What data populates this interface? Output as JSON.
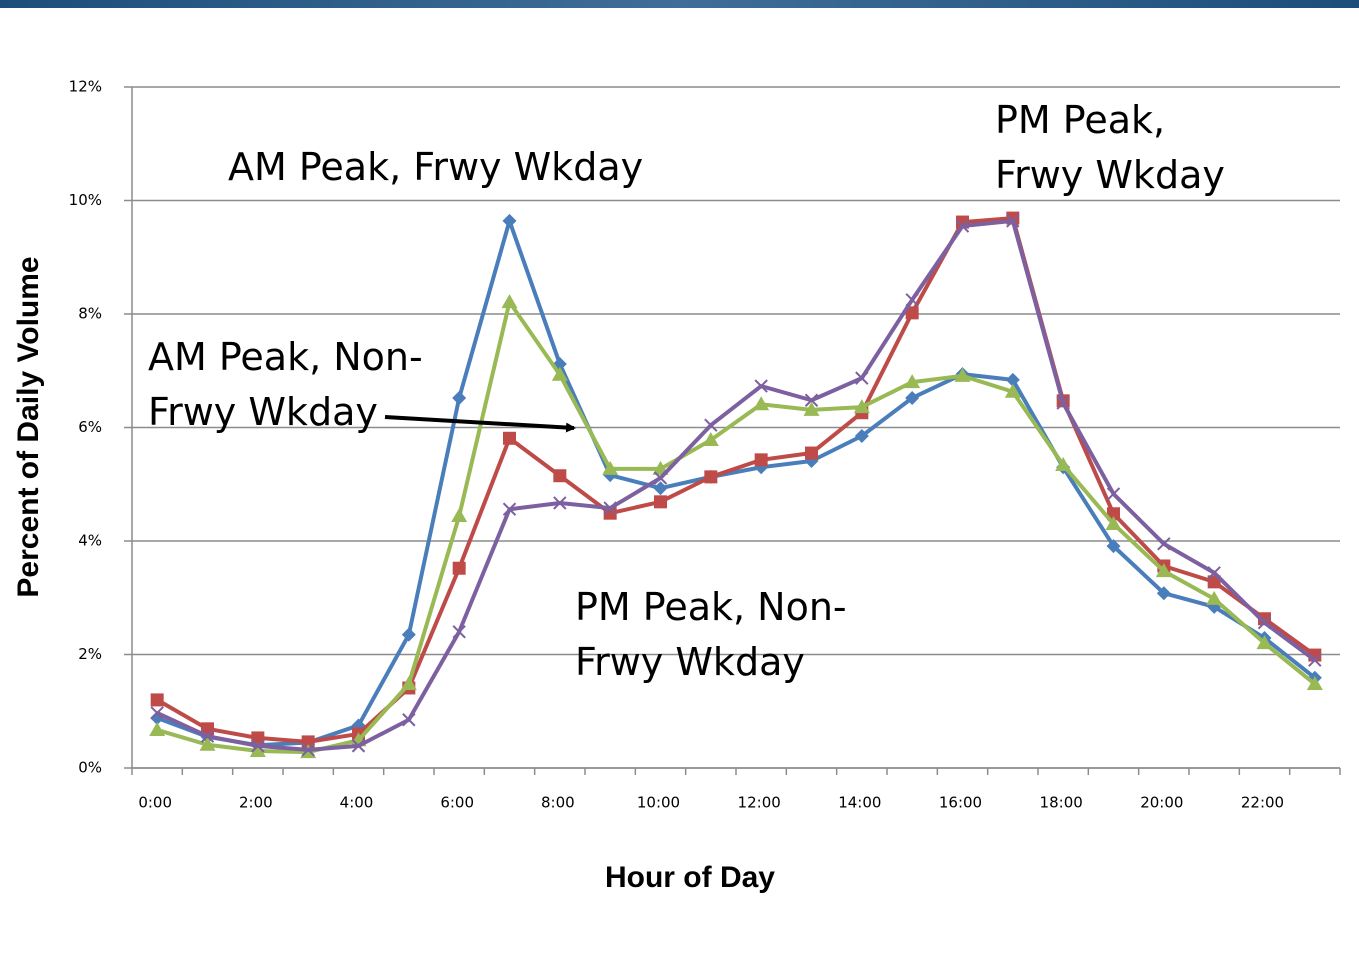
{
  "chart_data": {
    "type": "line",
    "x_label": "Hour of Day",
    "y_label": "Percent of Daily Volume",
    "categories": [
      "0:00",
      null,
      "2:00",
      null,
      "4:00",
      null,
      "6:00",
      null,
      "8:00",
      null,
      "10:00",
      null,
      "12:00",
      null,
      "14:00",
      null,
      "16:00",
      null,
      "18:00",
      null,
      "20:00",
      null,
      "22:00",
      null
    ],
    "ylim": [
      0,
      12
    ],
    "yticks": [
      {
        "value": 0,
        "label": "0%"
      },
      {
        "value": 2,
        "label": "2%"
      },
      {
        "value": 4,
        "label": "4%"
      },
      {
        "value": 6,
        "label": "6%"
      },
      {
        "value": 8,
        "label": "8%"
      },
      {
        "value": 10,
        "label": "10%"
      },
      {
        "value": 12,
        "label": "12%"
      }
    ],
    "grid": true,
    "series": [
      {
        "color": "#4a7ebb",
        "marker": "diamond",
        "values": [
          0.88,
          0.55,
          0.4,
          0.45,
          0.75,
          2.35,
          6.52,
          9.64,
          7.12,
          5.16,
          4.93,
          5.13,
          5.3,
          5.41,
          5.85,
          6.52,
          6.94,
          6.84,
          5.3,
          3.91,
          3.08,
          2.84,
          2.29,
          1.59
        ]
      },
      {
        "color": "#be4b48",
        "marker": "square",
        "values": [
          1.2,
          0.69,
          0.53,
          0.46,
          0.6,
          1.41,
          3.52,
          5.81,
          5.15,
          4.49,
          4.69,
          5.13,
          5.43,
          5.55,
          6.26,
          8.02,
          9.62,
          9.69,
          6.47,
          4.48,
          3.56,
          3.28,
          2.63,
          1.99
        ]
      },
      {
        "color": "#98b954",
        "marker": "triangle",
        "values": [
          0.67,
          0.41,
          0.3,
          0.28,
          0.49,
          1.48,
          4.44,
          8.21,
          6.93,
          5.27,
          5.27,
          5.78,
          6.41,
          6.31,
          6.36,
          6.8,
          6.91,
          6.63,
          5.34,
          4.3,
          3.47,
          2.98,
          2.2,
          1.48
        ]
      },
      {
        "color": "#7d60a0",
        "marker": "x",
        "values": [
          0.97,
          0.56,
          0.39,
          0.32,
          0.39,
          0.85,
          2.4,
          4.56,
          4.67,
          4.58,
          5.11,
          6.04,
          6.73,
          6.48,
          6.87,
          8.25,
          9.55,
          9.64,
          6.43,
          4.83,
          3.95,
          3.44,
          2.56,
          1.9
        ]
      }
    ],
    "annotations": [
      {
        "lines": [
          "AM Peak, Frwy Wkday"
        ]
      },
      {
        "lines": [
          "PM Peak,",
          "Frwy Wkday"
        ]
      },
      {
        "lines": [
          "AM Peak, Non-",
          "Frwy Wkday"
        ]
      },
      {
        "lines": [
          "PM Peak, Non-",
          "Frwy Wkday"
        ]
      }
    ]
  }
}
